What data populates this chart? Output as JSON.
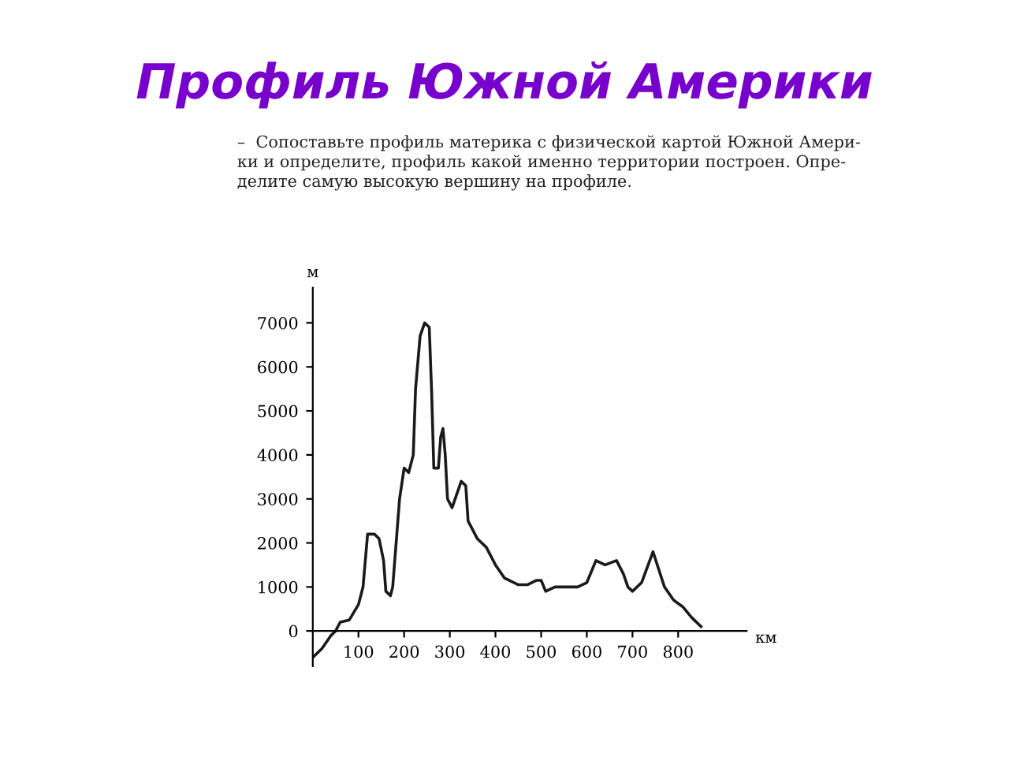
{
  "chart_data": {
    "type": "line",
    "title": "Профиль Южной Америки",
    "subtitle": "–  Сопоставьте профиль материка с физической картой Южной Амери-\nки и определите, профиль какой именно территории построен. Опре-\nделите самую высокую вершину на профиле.",
    "xlabel": "км",
    "ylabel": "м",
    "series": [
      {
        "color": "#1a1a1a",
        "x": [
          0,
          20,
          40,
          50,
          60,
          80,
          100,
          110,
          120,
          135,
          145,
          155,
          160,
          170,
          175,
          190,
          200,
          210,
          220,
          225,
          235,
          245,
          255,
          260,
          265,
          275,
          280,
          285,
          290,
          295,
          305,
          315,
          325,
          335,
          340,
          360,
          380,
          400,
          420,
          450,
          470,
          490,
          500,
          510,
          530,
          560,
          580,
          600,
          620,
          640,
          665,
          680,
          690,
          700,
          720,
          745,
          770,
          790,
          810,
          830,
          850
        ],
        "values": [
          -600,
          -400,
          -100,
          0,
          200,
          250,
          600,
          1000,
          2200,
          2200,
          2100,
          1600,
          900,
          800,
          1000,
          3000,
          3700,
          3600,
          4000,
          5500,
          6700,
          7000,
          6900,
          5500,
          3700,
          3700,
          4400,
          4600,
          4000,
          3000,
          2800,
          3100,
          3400,
          3300,
          2500,
          2100,
          1900,
          1500,
          1200,
          1050,
          1050,
          1150,
          1150,
          900,
          1000,
          1000,
          1000,
          1100,
          1600,
          1500,
          1600,
          1300,
          1000,
          900,
          1100,
          1800,
          1000,
          700,
          550,
          300,
          100
        ]
      }
    ],
    "xlim": [
      0,
      950
    ],
    "ylim": [
      -800,
      7800
    ],
    "xticks": [
      100,
      200,
      300,
      400,
      500,
      600,
      700,
      800
    ],
    "yticks": [
      0,
      1000,
      2000,
      3000,
      4000,
      5000,
      6000,
      7000
    ],
    "grid": false,
    "legend": false,
    "marker": "none",
    "line_style": "solid"
  }
}
